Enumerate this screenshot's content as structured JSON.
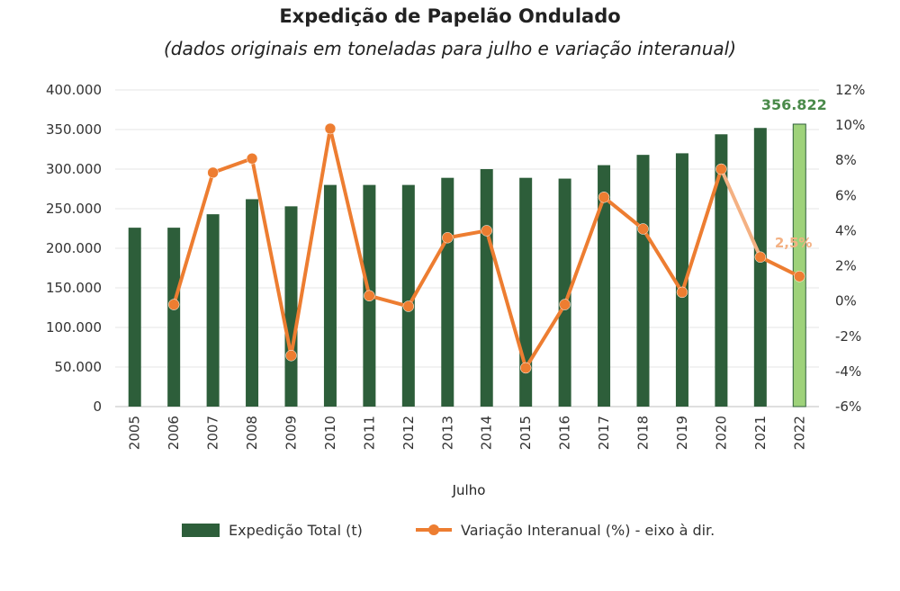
{
  "chart_data": {
    "type": "bar+line",
    "title": "Expedição de Papelão Ondulado",
    "subtitle": "(dados originais em toneladas para julho e variação interanual)",
    "xlabel": "Julho",
    "categories": [
      "2005",
      "2006",
      "2007",
      "2008",
      "2009",
      "2010",
      "2011",
      "2012",
      "2013",
      "2014",
      "2015",
      "2016",
      "2017",
      "2018",
      "2019",
      "2020",
      "2021",
      "2022"
    ],
    "series": [
      {
        "name": "Expedição Total (t)",
        "type": "bar",
        "axis": "left",
        "color": "#2d5e3a",
        "highlight_color": "#9ed27a",
        "highlight_index": 17,
        "values": [
          226000,
          226000,
          243000,
          262000,
          253000,
          280000,
          280000,
          280000,
          289000,
          300000,
          289000,
          288000,
          305000,
          318000,
          320000,
          344000,
          352000,
          356822
        ]
      },
      {
        "name": "Variação Interanual (%) - eixo à dir.",
        "type": "line",
        "axis": "right",
        "color": "#ed7d31",
        "faded_color": "#f4b183",
        "start_index": 1,
        "values": [
          null,
          -0.2,
          7.3,
          8.1,
          -3.1,
          9.8,
          0.3,
          -0.3,
          3.6,
          4.0,
          -3.8,
          -0.2,
          5.9,
          4.1,
          0.5,
          7.5,
          2.5,
          1.4
        ]
      }
    ],
    "y_left": {
      "min": 0,
      "max": 400000,
      "ticks": [
        "0",
        "50.000",
        "100.000",
        "150.000",
        "200.000",
        "250.000",
        "300.000",
        "350.000",
        "400.000"
      ]
    },
    "y_right": {
      "min": -6,
      "max": 12,
      "ticks": [
        "-6%",
        "-4%",
        "-2%",
        "0%",
        "2%",
        "4%",
        "6%",
        "8%",
        "10%",
        "12%"
      ]
    },
    "annotations": [
      {
        "label": "356.822",
        "target": "bar",
        "index": 17,
        "color": "#4a8a4a"
      },
      {
        "label": "2,5%",
        "target": "line",
        "index": 16,
        "color": "#f4b183"
      }
    ],
    "grid": true,
    "legend": "bottom"
  }
}
